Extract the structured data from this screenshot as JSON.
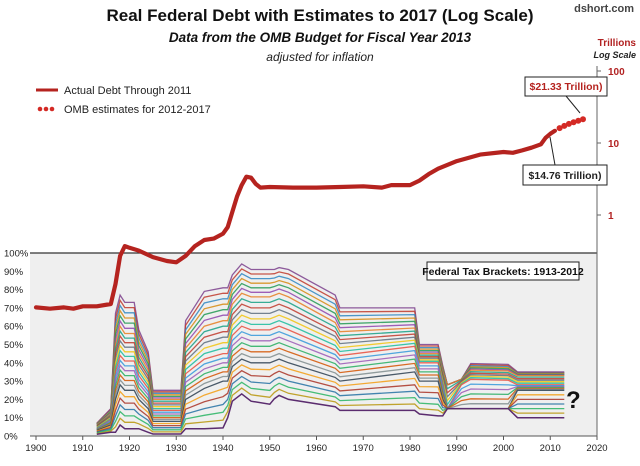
{
  "title": "Real Federal Debt with Estimates to 2017 (Log Scale)",
  "subtitle": "Data from the OMB Budget for Fiscal Year 2013",
  "adjusted": "adjusted for inflation",
  "brand": "dshort.com",
  "unit_line1": "Trillions",
  "unit_line2": "Log Scale",
  "legend": {
    "actual": "Actual Debt Through 2011",
    "estimates": "OMB estimates for 2012-2017"
  },
  "annotations": {
    "high": "$21.33 Trillion)",
    "low": "$14.76 Trillion)",
    "brackets": "Federal Tax Brackets: 1913-2012",
    "question": "?"
  },
  "colors": {
    "debt": "#b5231f",
    "estimates": "#d42a25",
    "panel_bg": "#efefef",
    "right_axis": "#b22222"
  },
  "chart_data": [
    {
      "type": "line",
      "title": "Real Federal Debt with Estimates to 2017 (Log Scale)",
      "xlabel": "",
      "ylabel": "Trillions",
      "log_scale": true,
      "ylim": [
        0.1,
        100
      ],
      "y_ticks": [
        1,
        10,
        100
      ],
      "x_ticks": [
        1900,
        1910,
        1920,
        1930,
        1940,
        1950,
        1960,
        1970,
        1980,
        1990,
        2000,
        2010,
        2020
      ],
      "xlim": [
        1900,
        2020
      ],
      "series": [
        {
          "name": "Actual Debt Through 2011",
          "x": [
            1900,
            1903,
            1906,
            1908,
            1910,
            1913,
            1916,
            1917,
            1918,
            1919,
            1920,
            1922,
            1925,
            1928,
            1930,
            1932,
            1934,
            1936,
            1938,
            1940,
            1941,
            1942,
            1943,
            1944,
            1945,
            1946,
            1947,
            1948,
            1950,
            1955,
            1960,
            1965,
            1970,
            1974,
            1976,
            1978,
            1980,
            1982,
            1984,
            1986,
            1990,
            1995,
            2000,
            2002,
            2004,
            2006,
            2008,
            2009,
            2010,
            2011
          ],
          "y": [
            0.052,
            0.05,
            0.052,
            0.05,
            0.054,
            0.054,
            0.058,
            0.11,
            0.27,
            0.37,
            0.35,
            0.32,
            0.26,
            0.23,
            0.22,
            0.27,
            0.37,
            0.45,
            0.47,
            0.55,
            0.68,
            1.1,
            1.8,
            2.6,
            3.4,
            3.3,
            2.7,
            2.4,
            2.45,
            2.4,
            2.4,
            2.45,
            2.5,
            2.4,
            2.6,
            2.6,
            2.6,
            3.0,
            3.7,
            4.4,
            5.6,
            6.9,
            7.5,
            7.3,
            7.9,
            8.6,
            9.6,
            11.8,
            13.4,
            14.76
          ]
        },
        {
          "name": "OMB estimates for 2012-2017",
          "x": [
            2012,
            2013,
            2014,
            2015,
            2016,
            2017
          ],
          "y": [
            16.1,
            17.3,
            18.4,
            19.4,
            20.4,
            21.33
          ]
        }
      ]
    },
    {
      "type": "line",
      "title": "Federal Tax Brackets: 1913-2012",
      "ylabel": "",
      "ylim": [
        0,
        100
      ],
      "y_ticks": [
        "0%",
        "10%",
        "20%",
        "30%",
        "40%",
        "50%",
        "60%",
        "70%",
        "80%",
        "90%",
        "100%"
      ],
      "x_ticks": [
        1900,
        1910,
        1920,
        1930,
        1940,
        1950,
        1960,
        1970,
        1980,
        1990,
        2000,
        2010,
        2020
      ],
      "xlim": [
        1900,
        2020
      ],
      "series": [
        {
          "x": [
            1913,
            1916,
            1917,
            1918,
            1919,
            1921,
            1922,
            1924,
            1925,
            1931,
            1932,
            1936,
            1940,
            1941,
            1942,
            1944,
            1946,
            1950,
            1951,
            1952,
            1954,
            1964,
            1965,
            1981,
            1982,
            1986,
            1987,
            1988,
            1991,
            1993,
            2001,
            2003,
            2013
          ],
          "y": [
            7,
            15,
            67,
            77,
            73,
            73,
            58,
            46,
            25,
            25,
            63,
            79,
            81,
            81,
            88,
            94,
            91,
            91,
            91,
            92,
            91,
            77,
            70,
            70,
            50,
            50,
            38.5,
            28,
            31,
            39.6,
            39.1,
            35,
            35
          ]
        },
        {
          "x": [
            1913,
            1916,
            1917,
            1918,
            1919,
            1921,
            1922,
            1924,
            1925,
            1931,
            1932,
            1936,
            1940,
            1941,
            1942,
            1944,
            1946,
            1950,
            1951,
            1952,
            1954,
            1964,
            1965,
            1981,
            1982,
            1986,
            1987,
            1988,
            1991,
            1993,
            2001,
            2003,
            2013
          ],
          "y": [
            6,
            12,
            50,
            60,
            56,
            56,
            45,
            36,
            20,
            20,
            48,
            60,
            63,
            63,
            72,
            78,
            76,
            76,
            77,
            78,
            76,
            62,
            57,
            59,
            45,
            45,
            35,
            28,
            31,
            36,
            35.5,
            33,
            33
          ]
        },
        {
          "x": [
            1913,
            1916,
            1917,
            1918,
            1919,
            1921,
            1922,
            1924,
            1925,
            1931,
            1932,
            1936,
            1940,
            1941,
            1942,
            1944,
            1946,
            1950,
            1951,
            1952,
            1954,
            1964,
            1965,
            1981,
            1982,
            1986,
            1987,
            1988,
            1991,
            1993,
            2001,
            2003,
            2013
          ],
          "y": [
            4,
            9,
            35,
            44,
            41,
            41,
            33,
            26,
            14,
            14,
            34,
            42,
            45,
            45,
            55,
            60,
            58,
            58,
            59,
            60,
            58,
            47,
            44,
            49,
            40,
            40,
            28,
            15,
            28,
            31,
            30.5,
            28,
            28
          ]
        },
        {
          "x": [
            1913,
            1916,
            1917,
            1918,
            1919,
            1921,
            1922,
            1924,
            1925,
            1931,
            1932,
            1936,
            1940,
            1941,
            1942,
            1944,
            1946,
            1950,
            1951,
            1952,
            1954,
            1964,
            1965,
            1981,
            1982,
            1986,
            1987,
            1988,
            1991,
            1993,
            2001,
            2003,
            2013
          ],
          "y": [
            3,
            6,
            20,
            28,
            25,
            25,
            20,
            15,
            8,
            8,
            20,
            26,
            30,
            30,
            38,
            42,
            40,
            40,
            41,
            42,
            40,
            32,
            30,
            35,
            30,
            30,
            20,
            15,
            15,
            15,
            15,
            25,
            25
          ]
        },
        {
          "x": [
            1913,
            1916,
            1917,
            1918,
            1919,
            1921,
            1922,
            1924,
            1925,
            1931,
            1932,
            1936,
            1940,
            1941,
            1942,
            1944,
            1946,
            1950,
            1951,
            1952,
            1954,
            1964,
            1965,
            1981,
            1982,
            1986,
            1987,
            1988,
            1991,
            1993,
            2001,
            2003,
            2013
          ],
          "y": [
            1,
            2,
            2,
            6,
            4,
            4,
            4,
            2,
            1.1,
            1.1,
            4,
            4,
            4.4,
            10,
            19,
            23,
            19,
            17.4,
            20.4,
            22.2,
            20,
            16,
            14,
            14,
            12,
            11,
            11,
            15,
            15,
            15,
            15,
            10,
            10
          ]
        }
      ]
    }
  ]
}
